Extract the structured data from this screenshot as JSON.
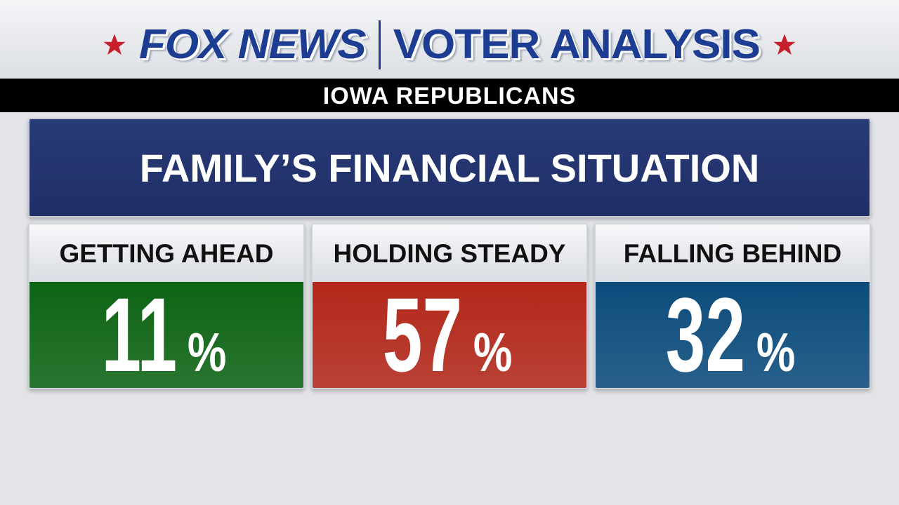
{
  "header": {
    "brand": "FOX NEWS",
    "program": "VOTER ANALYSIS",
    "subtitle": "IOWA REPUBLICANS"
  },
  "question": "FAMILY’S FINANCIAL SITUATION",
  "cards": [
    {
      "label": "GETTING AHEAD",
      "value": 11,
      "unit": "%",
      "color": "#0d6414"
    },
    {
      "label": "HOLDING STEADY",
      "value": 57,
      "unit": "%",
      "color": "#b3281a"
    },
    {
      "label": "FALLING BEHIND",
      "value": 32,
      "unit": "%",
      "color": "#0c4c7c"
    }
  ]
}
